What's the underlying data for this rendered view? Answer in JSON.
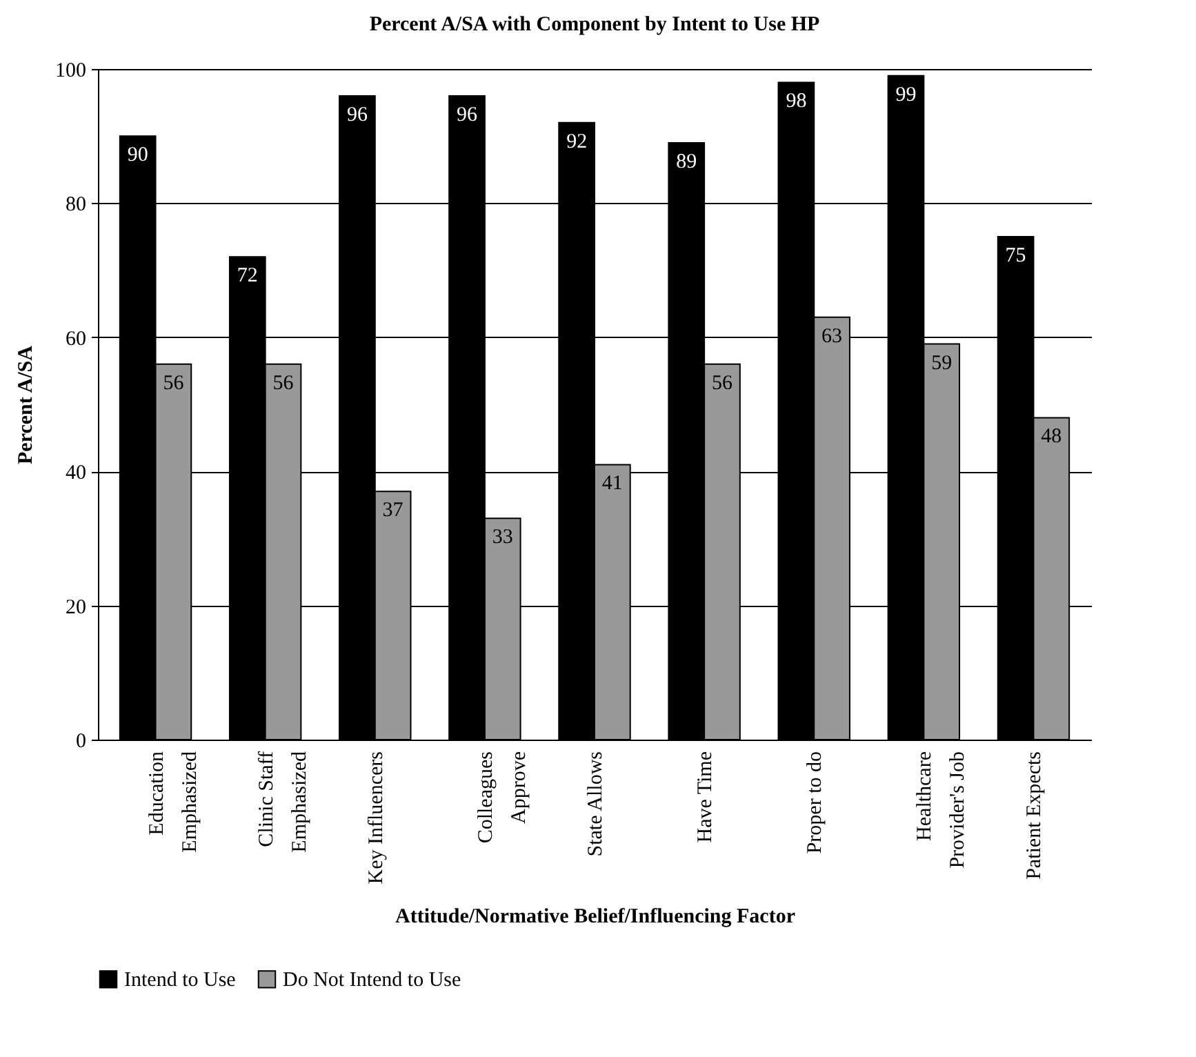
{
  "chart_data": {
    "type": "bar",
    "title": "Percent A/SA with Component by Intent to Use HP",
    "xlabel": "Attitude/Normative Belief/Influencing Factor",
    "ylabel": "Percent A/SA",
    "categories": [
      "Education Emphasized",
      "Clinic Staff Emphasized",
      "Key Influencers",
      "Colleagues Approve",
      "State Allows",
      "Have Time",
      "Proper to do",
      "Healthcare Provider's Job",
      "Patient Expects"
    ],
    "series": [
      {
        "name": "Intend to Use",
        "color": "#000000",
        "values": [
          90,
          72,
          96,
          96,
          92,
          89,
          98,
          99,
          75
        ]
      },
      {
        "name": "Do Not Intend to Use",
        "color": "#999999",
        "values": [
          56,
          56,
          37,
          33,
          41,
          56,
          63,
          59,
          48
        ]
      }
    ],
    "ylim": [
      0,
      100
    ],
    "yticks": [
      0,
      20,
      40,
      60,
      80,
      100
    ],
    "grid": "y",
    "legend": "bottom",
    "data_labels": true
  }
}
